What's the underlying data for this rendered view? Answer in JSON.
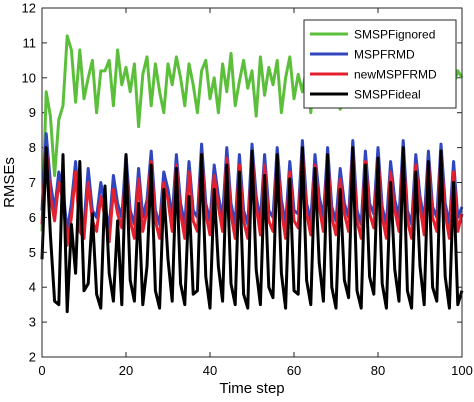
{
  "chart_data": {
    "type": "line",
    "title": "",
    "xlabel": "Time step",
    "ylabel": "RMSEs",
    "xlim": [
      0,
      100
    ],
    "ylim": [
      2,
      12
    ],
    "xticks": [
      0,
      20,
      40,
      60,
      80,
      100
    ],
    "yticks": [
      2,
      3,
      4,
      5,
      6,
      7,
      8,
      9,
      10,
      11,
      12
    ],
    "legend_position": "top-right",
    "x": [
      0,
      1,
      2,
      3,
      4,
      5,
      6,
      7,
      8,
      9,
      10,
      11,
      12,
      13,
      14,
      15,
      16,
      17,
      18,
      19,
      20,
      21,
      22,
      23,
      24,
      25,
      26,
      27,
      28,
      29,
      30,
      31,
      32,
      33,
      34,
      35,
      36,
      37,
      38,
      39,
      40,
      41,
      42,
      43,
      44,
      45,
      46,
      47,
      48,
      49,
      50,
      51,
      52,
      53,
      54,
      55,
      56,
      57,
      58,
      59,
      60,
      61,
      62,
      63,
      64,
      65,
      66,
      67,
      68,
      69,
      70,
      71,
      72,
      73,
      74,
      75,
      76,
      77,
      78,
      79,
      80,
      81,
      82,
      83,
      84,
      85,
      86,
      87,
      88,
      89,
      90,
      91,
      92,
      93,
      94,
      95,
      96,
      97,
      98,
      99,
      100
    ],
    "series": [
      {
        "name": "SMSPFignored",
        "color": "#5cbf3b",
        "values": [
          5.6,
          9.6,
          8.9,
          7.2,
          8.8,
          9.2,
          11.2,
          10.8,
          9.3,
          10.8,
          9.4,
          10.0,
          10.5,
          9.0,
          10.2,
          10.2,
          10.5,
          9.2,
          10.8,
          9.8,
          10.3,
          9.6,
          10.4,
          8.6,
          10.1,
          10.6,
          9.2,
          10.4,
          9.6,
          9.0,
          10.4,
          9.8,
          10.6,
          10.0,
          9.2,
          10.4,
          9.8,
          9.0,
          10.2,
          10.5,
          9.4,
          10.0,
          9.0,
          10.4,
          9.6,
          10.7,
          9.2,
          9.9,
          10.5,
          9.7,
          10.2,
          8.9,
          10.6,
          9.5,
          10.3,
          9.8,
          10.5,
          9.0,
          10.0,
          10.6,
          9.4,
          10.1,
          9.6,
          10.3,
          9.0,
          10.6,
          9.9,
          9.3,
          10.4,
          9.7,
          10.2,
          9.1,
          10.5,
          9.8,
          10.4,
          9.6,
          10.8,
          10.0,
          9.8,
          10.2,
          9.4,
          10.3,
          9.7,
          10.5,
          9.2,
          10.1,
          9.9,
          10.6,
          9.5,
          10.2,
          9.8,
          10.0,
          9.4,
          10.4,
          9.7,
          10.3,
          9.6,
          10.1,
          9.8,
          10.2,
          10.0
        ]
      },
      {
        "name": "MSPFRMD",
        "color": "#2f46bf",
        "values": [
          6.2,
          8.4,
          7.0,
          6.2,
          7.3,
          6.8,
          5.6,
          6.4,
          7.6,
          6.0,
          5.8,
          7.4,
          6.2,
          6.0,
          7.0,
          6.3,
          5.7,
          7.2,
          6.4,
          6.0,
          7.8,
          6.2,
          5.8,
          7.4,
          6.0,
          6.5,
          7.9,
          6.2,
          5.8,
          7.3,
          6.8,
          6.0,
          7.8,
          6.4,
          5.8,
          7.6,
          6.2,
          6.0,
          8.1,
          6.4,
          5.9,
          7.5,
          6.6,
          6.0,
          8.0,
          6.4,
          5.8,
          7.8,
          6.2,
          5.8,
          8.1,
          6.6,
          5.9,
          7.8,
          6.2,
          6.0,
          8.0,
          6.5,
          5.8,
          7.6,
          6.2,
          6.1,
          8.2,
          6.4,
          5.9,
          7.8,
          6.6,
          6.0,
          8.0,
          6.3,
          5.9,
          7.4,
          6.4,
          6.0,
          8.2,
          6.2,
          5.8,
          7.9,
          6.4,
          6.1,
          8.0,
          6.3,
          5.8,
          7.6,
          6.5,
          6.0,
          8.2,
          6.2,
          5.8,
          7.8,
          6.6,
          5.9,
          7.9,
          6.3,
          6.0,
          8.1,
          6.4,
          5.8,
          7.6,
          6.0,
          6.3
        ]
      },
      {
        "name": "newMSPFRMD",
        "color": "#e5202e",
        "values": [
          5.8,
          8.0,
          6.6,
          5.9,
          7.0,
          6.5,
          5.2,
          6.0,
          7.3,
          5.6,
          5.4,
          7.0,
          5.9,
          5.6,
          6.6,
          6.0,
          5.3,
          6.8,
          6.1,
          5.7,
          7.4,
          5.9,
          5.4,
          7.1,
          5.6,
          6.2,
          7.6,
          5.9,
          5.4,
          7.0,
          6.5,
          5.6,
          7.5,
          6.1,
          5.4,
          7.3,
          5.9,
          5.6,
          7.8,
          6.1,
          5.5,
          7.2,
          6.3,
          5.6,
          7.7,
          6.1,
          5.4,
          7.5,
          5.9,
          5.4,
          7.8,
          6.3,
          5.5,
          7.5,
          5.9,
          5.6,
          7.7,
          6.2,
          5.4,
          7.3,
          5.9,
          5.7,
          7.9,
          6.1,
          5.5,
          7.5,
          6.3,
          5.6,
          7.7,
          6.0,
          5.5,
          7.1,
          6.1,
          5.6,
          7.9,
          5.9,
          5.4,
          7.6,
          6.1,
          5.7,
          7.7,
          6.0,
          5.4,
          7.3,
          6.2,
          5.6,
          7.9,
          5.9,
          5.4,
          7.5,
          6.3,
          5.5,
          7.6,
          6.0,
          5.6,
          7.8,
          6.1,
          5.4,
          7.3,
          5.6,
          6.1
        ]
      },
      {
        "name": "SMSPFideal",
        "color": "#000000",
        "values": [
          4.8,
          8.0,
          5.5,
          3.6,
          3.5,
          7.8,
          3.3,
          5.8,
          4.4,
          7.6,
          3.9,
          4.1,
          6.1,
          3.8,
          3.4,
          6.9,
          4.4,
          3.6,
          5.9,
          3.5,
          7.8,
          4.2,
          3.6,
          6.4,
          3.5,
          4.6,
          7.5,
          3.9,
          3.4,
          6.8,
          4.8,
          3.6,
          7.4,
          4.1,
          3.5,
          6.6,
          3.8,
          3.9,
          7.8,
          4.3,
          3.4,
          6.8,
          4.6,
          3.6,
          7.5,
          4.1,
          3.5,
          7.3,
          3.8,
          3.4,
          7.9,
          4.5,
          3.5,
          7.2,
          4.0,
          3.7,
          7.8,
          4.4,
          3.4,
          7.1,
          3.9,
          3.8,
          8.0,
          4.2,
          3.5,
          7.4,
          4.7,
          3.6,
          7.8,
          4.0,
          3.4,
          6.8,
          4.2,
          3.7,
          8.0,
          3.9,
          3.4,
          7.5,
          4.3,
          3.8,
          7.7,
          4.1,
          3.4,
          7.0,
          4.5,
          3.6,
          8.0,
          3.9,
          3.4,
          7.3,
          4.6,
          3.5,
          7.6,
          4.0,
          3.6,
          7.9,
          4.3,
          3.4,
          7.0,
          3.5,
          3.9
        ]
      }
    ]
  }
}
